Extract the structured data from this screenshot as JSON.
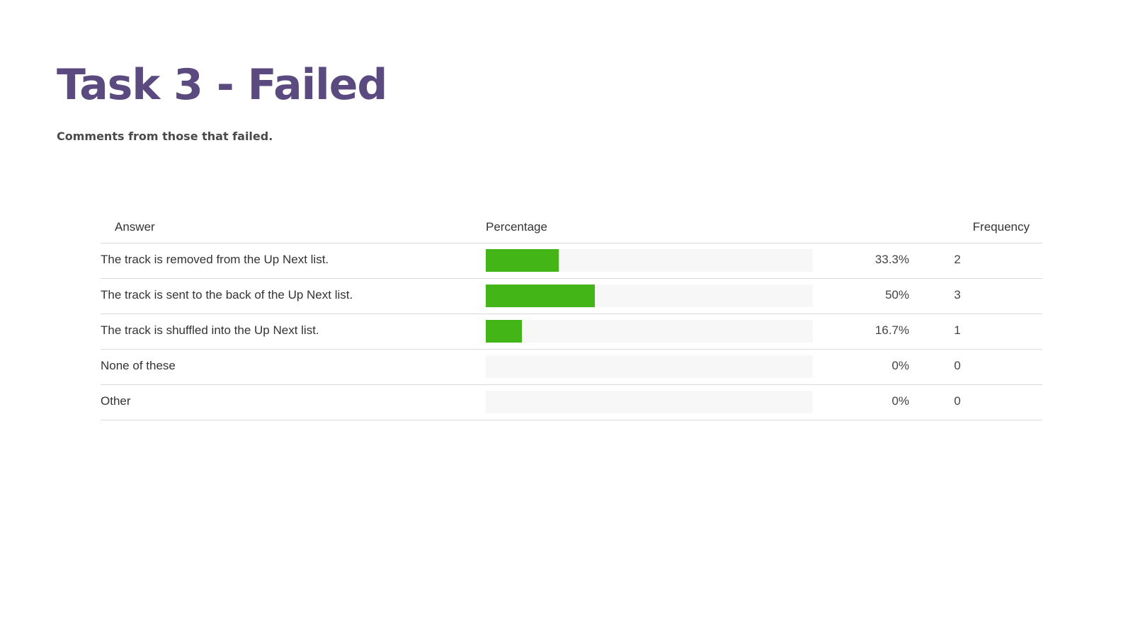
{
  "slide": {
    "title": "Task 3 - Failed",
    "subtitle": "Comments from those that failed."
  },
  "table": {
    "headers": {
      "answer": "Answer",
      "percentage": "Percentage",
      "frequency": "Frequency"
    }
  },
  "colors": {
    "title": "#5a4a80",
    "bar": "#44b516",
    "track": "#f7f7f7"
  },
  "chart_data": {
    "type": "bar",
    "orientation": "horizontal",
    "title": "",
    "xlabel": "Percentage",
    "ylabel": "Answer",
    "xlim": [
      0,
      150
    ],
    "grid": false,
    "categories": [
      "The track is removed from the Up Next list.",
      "The track is sent to the back of the Up Next list.",
      "The track is shuffled into the Up Next list.",
      "None of these",
      "Other"
    ],
    "values": [
      33.3,
      50,
      16.7,
      0,
      0
    ],
    "percent_labels": [
      "33.3%",
      "50%",
      "16.7%",
      "0%",
      "0%"
    ],
    "frequencies": [
      "2",
      "3",
      "1",
      "0",
      "0"
    ]
  }
}
